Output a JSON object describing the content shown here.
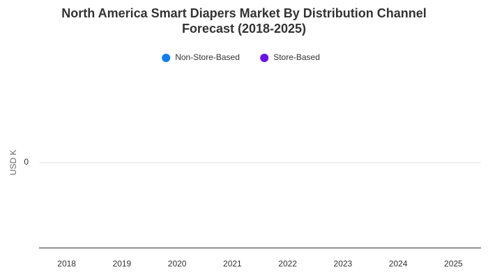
{
  "chart_data": {
    "type": "bar",
    "title": "North America Smart Diapers Market By Distribution Channel Forecast (2018-2025)",
    "ylabel": "USD K",
    "categories": [
      "2018",
      "2019",
      "2020",
      "2021",
      "2022",
      "2023",
      "2024",
      "2025"
    ],
    "series": [
      {
        "name": "Non-Store-Based",
        "color": "#0d7ff0",
        "values": [
          0,
          0,
          0,
          0,
          0,
          0,
          0,
          0
        ]
      },
      {
        "name": "Store-Based",
        "color": "#6a12e8",
        "values": [
          0,
          0,
          0,
          0,
          0,
          0,
          0,
          0
        ]
      }
    ],
    "ylim": [
      -1,
      1
    ],
    "yticks": [
      0
    ],
    "grid": true,
    "legend": "top"
  }
}
